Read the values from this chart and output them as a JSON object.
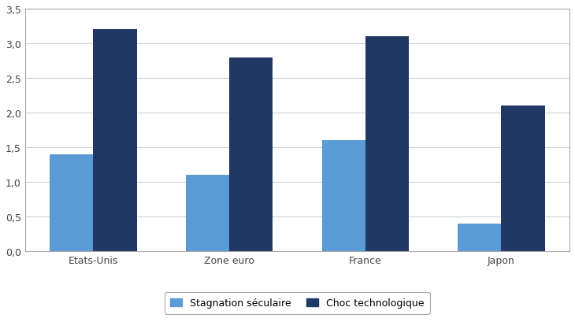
{
  "categories": [
    "Etats-Unis",
    "Zone euro",
    "France",
    "Japon"
  ],
  "stagnation": [
    1.4,
    1.1,
    1.6,
    0.4
  ],
  "choc": [
    3.2,
    2.8,
    3.1,
    2.1
  ],
  "color_stagnation": "#5b9bd5",
  "color_choc": "#1f3864",
  "legend_stagnation": "Stagnation séculaire",
  "legend_choc": "Choc technologique",
  "ylim": [
    0,
    3.5
  ],
  "yticks": [
    0.0,
    0.5,
    1.0,
    1.5,
    2.0,
    2.5,
    3.0,
    3.5
  ],
  "ytick_labels": [
    "0,0",
    "0,5",
    "1,0",
    "1,5",
    "2,0",
    "2,5",
    "3,0",
    "3,5"
  ],
  "bar_width": 0.32,
  "figsize": [
    7.3,
    4.1
  ],
  "dpi": 100,
  "background_color": "#ffffff",
  "plot_bg_color": "#ffffff",
  "grid_color": "#d0d0d0",
  "spine_color": "#aaaaaa"
}
